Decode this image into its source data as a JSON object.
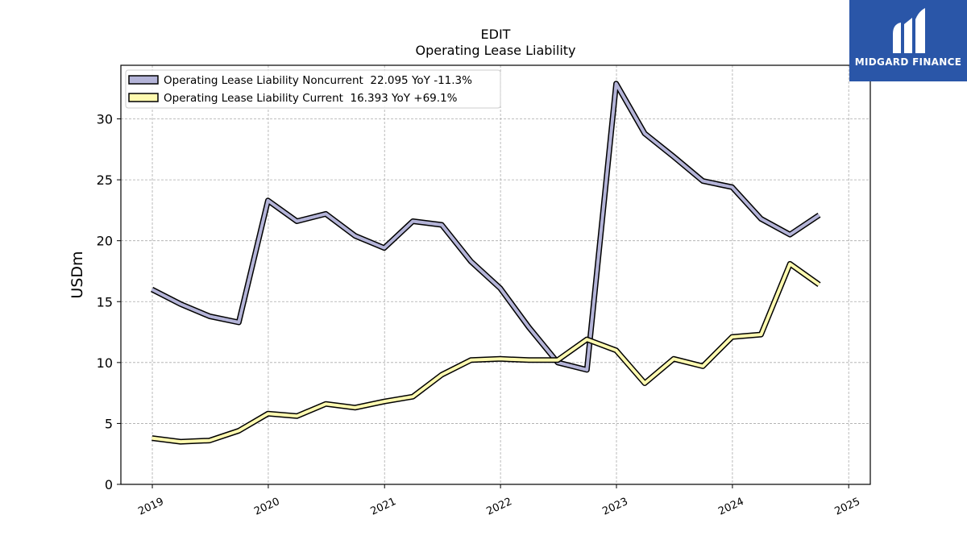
{
  "title": "EDIT",
  "subtitle": "Operating Lease Liability",
  "brand": {
    "name": "MIDGARD FINANCE",
    "bg_color": "#2a56a8",
    "fg_color": "#ffffff"
  },
  "chart_data": {
    "type": "line",
    "title": "EDIT",
    "subtitle": "Operating Lease Liability",
    "xlabel": "",
    "ylabel": "USDm",
    "xlim": [
      "2018-09-24",
      "2025-03-10"
    ],
    "ylim": [
      0,
      34.4
    ],
    "yticks": [
      0,
      5,
      10,
      15,
      20,
      25,
      30
    ],
    "xticks": [
      "2019",
      "2020",
      "2021",
      "2022",
      "2023",
      "2024",
      "2025"
    ],
    "grid": true,
    "legend_position": "top-left",
    "series": [
      {
        "name": "Operating Lease Liability Noncurrent",
        "legend_label": "Operating Lease Liability Noncurrent  22.095 YoY -11.3%",
        "color": "#b4b4d8",
        "x": [
          "2018-12-31",
          "2019-03-31",
          "2019-06-30",
          "2019-09-30",
          "2019-12-31",
          "2020-03-31",
          "2020-06-30",
          "2020-09-30",
          "2020-12-31",
          "2021-03-31",
          "2021-06-30",
          "2021-09-30",
          "2021-12-31",
          "2022-03-31",
          "2022-06-30",
          "2022-09-30",
          "2022-12-31",
          "2023-03-31",
          "2023-06-30",
          "2023-09-30",
          "2023-12-31",
          "2024-03-31",
          "2024-06-30",
          "2024-09-30"
        ],
        "values": [
          16.0,
          14.8,
          13.8,
          13.3,
          23.3,
          21.6,
          22.2,
          20.4,
          19.4,
          21.6,
          21.3,
          18.3,
          16.1,
          12.9,
          10.0,
          9.4,
          32.9,
          28.8,
          26.9,
          24.9,
          24.4,
          21.8,
          20.5,
          22.1
        ]
      },
      {
        "name": "Operating Lease Liability Current",
        "legend_label": "Operating Lease Liability Current  16.393 YoY +69.1%",
        "color": "#fffab0",
        "x": [
          "2018-12-31",
          "2019-03-31",
          "2019-06-30",
          "2019-09-30",
          "2019-12-31",
          "2020-03-31",
          "2020-06-30",
          "2020-09-30",
          "2020-12-31",
          "2021-03-31",
          "2021-06-30",
          "2021-09-30",
          "2021-12-31",
          "2022-03-31",
          "2022-06-30",
          "2022-09-30",
          "2022-12-31",
          "2023-03-31",
          "2023-06-30",
          "2023-09-30",
          "2023-12-31",
          "2024-03-31",
          "2024-06-30",
          "2024-09-30"
        ],
        "values": [
          3.8,
          3.5,
          3.6,
          4.4,
          5.8,
          5.6,
          6.6,
          6.3,
          6.8,
          7.2,
          9.0,
          10.2,
          10.3,
          10.2,
          10.2,
          11.9,
          11.0,
          8.3,
          10.3,
          9.7,
          12.1,
          12.3,
          18.1,
          16.4
        ]
      }
    ]
  }
}
